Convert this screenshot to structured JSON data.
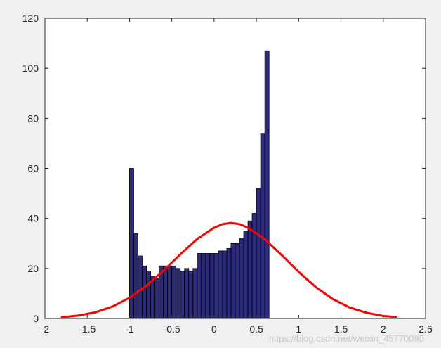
{
  "chart_data": {
    "type": "bar",
    "title": "",
    "xlabel": "",
    "ylabel": "",
    "xlim": [
      -2,
      2.5
    ],
    "ylim": [
      0,
      120
    ],
    "grid": false,
    "legend": "none",
    "xticks": [
      -2,
      -1.5,
      -1,
      -0.5,
      0,
      0.5,
      1,
      1.5,
      2,
      2.5
    ],
    "xtick_labels": [
      "-2",
      "-1.5",
      "-1",
      "-0.5",
      "0",
      "0.5",
      "1",
      "1.5",
      "2",
      "2.5"
    ],
    "yticks": [
      0,
      20,
      40,
      60,
      80,
      100,
      120
    ],
    "ytick_labels": [
      "0",
      "20",
      "40",
      "60",
      "80",
      "100",
      "120"
    ],
    "histogram": {
      "bin_start": -1.0,
      "bin_width": 0.05,
      "counts": [
        60,
        34,
        25,
        21,
        19,
        17,
        16,
        21,
        21,
        21,
        21,
        20,
        19,
        20,
        19,
        20,
        26,
        26,
        26,
        26,
        26,
        27,
        27,
        28,
        30,
        30,
        32,
        35,
        39,
        42,
        52,
        74,
        107
      ],
      "fill_color": "#2b2a7e",
      "edge_color": "#000000"
    },
    "series": [
      {
        "type": "line",
        "color": "#ff0000",
        "x": [
          -1.8,
          -1.6,
          -1.4,
          -1.2,
          -1.0,
          -0.8,
          -0.6,
          -0.4,
          -0.2,
          0.0,
          0.1,
          0.2,
          0.3,
          0.4,
          0.6,
          0.8,
          1.0,
          1.2,
          1.4,
          1.6,
          1.8,
          2.0,
          2.15
        ],
        "y": [
          0.5,
          1.2,
          2.5,
          4.8,
          8.3,
          13.1,
          19.1,
          25.6,
          31.8,
          36.3,
          37.7,
          38.2,
          37.7,
          36.3,
          31.6,
          25.3,
          18.6,
          12.6,
          7.8,
          4.4,
          2.3,
          1.0,
          0.6
        ]
      }
    ]
  },
  "watermark": "https://blog.csdn.net/weixin_45770090"
}
